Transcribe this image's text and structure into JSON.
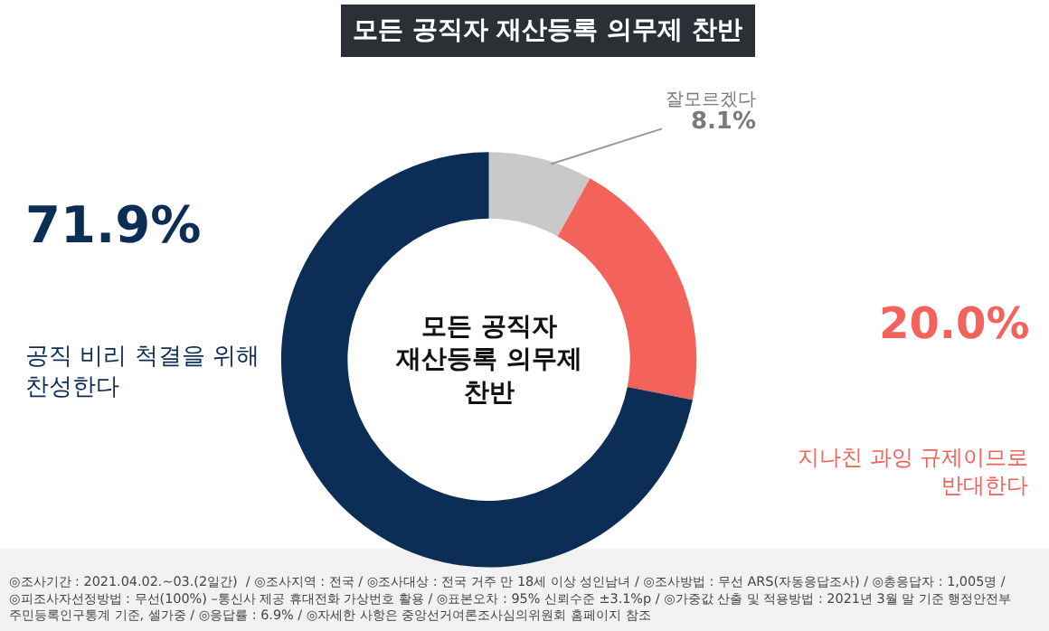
{
  "chart_data": {
    "type": "donut",
    "title": "모든 공직자 재산등록 의무제 찬반",
    "categories": [
      "잘모르겠다",
      "지나친 과잉 규제이므로\n반대한다",
      "공직 비리 척결을 위해\n찬성한다"
    ],
    "values": [
      8.1,
      20.0,
      71.9
    ],
    "value_labels": [
      "8.1%",
      "20.0%",
      "71.9%"
    ],
    "colors": [
      "#c9c9c9",
      "#f4625c",
      "#0c2d55"
    ],
    "annotations": [
      "모든 공직자\n재산등록 의무제\n찬반",
      "◎조사기간 : 2021.04.02.~03.(2일간)  / ◎조사지역 : 전국 / ◎조사대상 : 전국 거주 만 18세 이상 성인남녀 / ◎조사방법 : 무선 ARS(자동응답조사) / ◎총응답자 : 1,005명 /\n◎피조사자선정방법 : 무선(100%) –통신사 제공 휴대전화 가상번호 활용 / ◎표본오차 : 95% 신뢰수준 ±3.1%p / ◎가중값 산출 및 적용방법 : 2021년 3월 말 기준 행정안전부\n주민등록인구통계 기준, 셀가중 / ◎응답률 : 6.9% / ◎자세한 사항은 중앙선거여론조사심의위원회 홈페이지 참조"
    ],
    "legend": false
  }
}
